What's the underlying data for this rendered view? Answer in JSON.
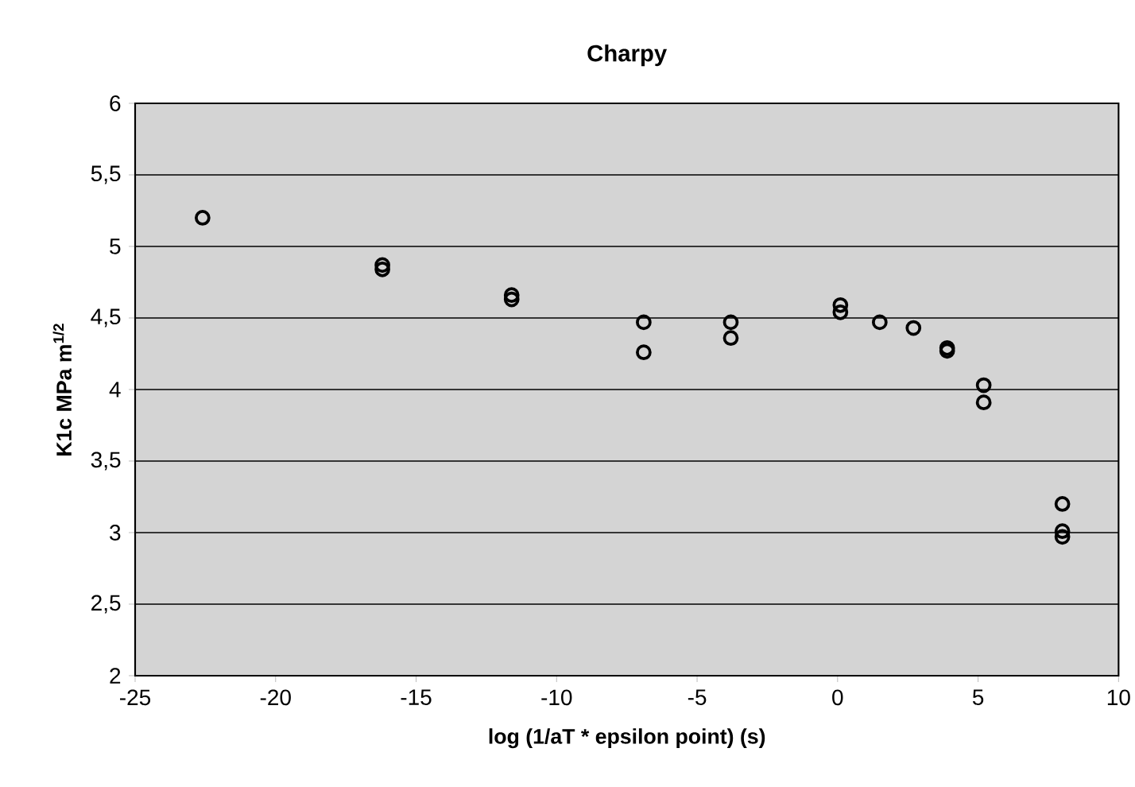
{
  "chart_data": {
    "type": "scatter",
    "title": "Charpy",
    "xlabel": "log (1/aT * epsilon point) (s)",
    "ylabel": "K1c MPa m$^{1/2}$",
    "x": [
      -22.6,
      -16.2,
      -16.2,
      -11.6,
      -11.6,
      -6.9,
      -6.9,
      -3.8,
      -3.8,
      0.1,
      0.1,
      1.5,
      2.7,
      3.9,
      3.9,
      5.2,
      5.2,
      8.0,
      8.0,
      8.0
    ],
    "values": [
      5.2,
      4.87,
      4.84,
      4.66,
      4.63,
      4.47,
      4.26,
      4.47,
      4.36,
      4.59,
      4.54,
      4.47,
      4.43,
      4.29,
      4.27,
      4.03,
      3.91,
      3.2,
      3.01,
      2.97
    ],
    "color": "#000000",
    "marker": "circle",
    "grid": "y",
    "xlim": [
      -25,
      10
    ],
    "xticks": [
      -25,
      -20,
      -15,
      -10,
      -5,
      0,
      5,
      10
    ],
    "ylim": [
      2,
      6
    ],
    "yticks": [
      2,
      {
        "value": 2.5,
        "label": "2,5"
      },
      3,
      {
        "value": 3.5,
        "label": "3,5"
      },
      4,
      {
        "value": 4.5,
        "label": "4,5"
      },
      5,
      {
        "value": 5.5,
        "label": "5,5"
      },
      6
    ]
  }
}
